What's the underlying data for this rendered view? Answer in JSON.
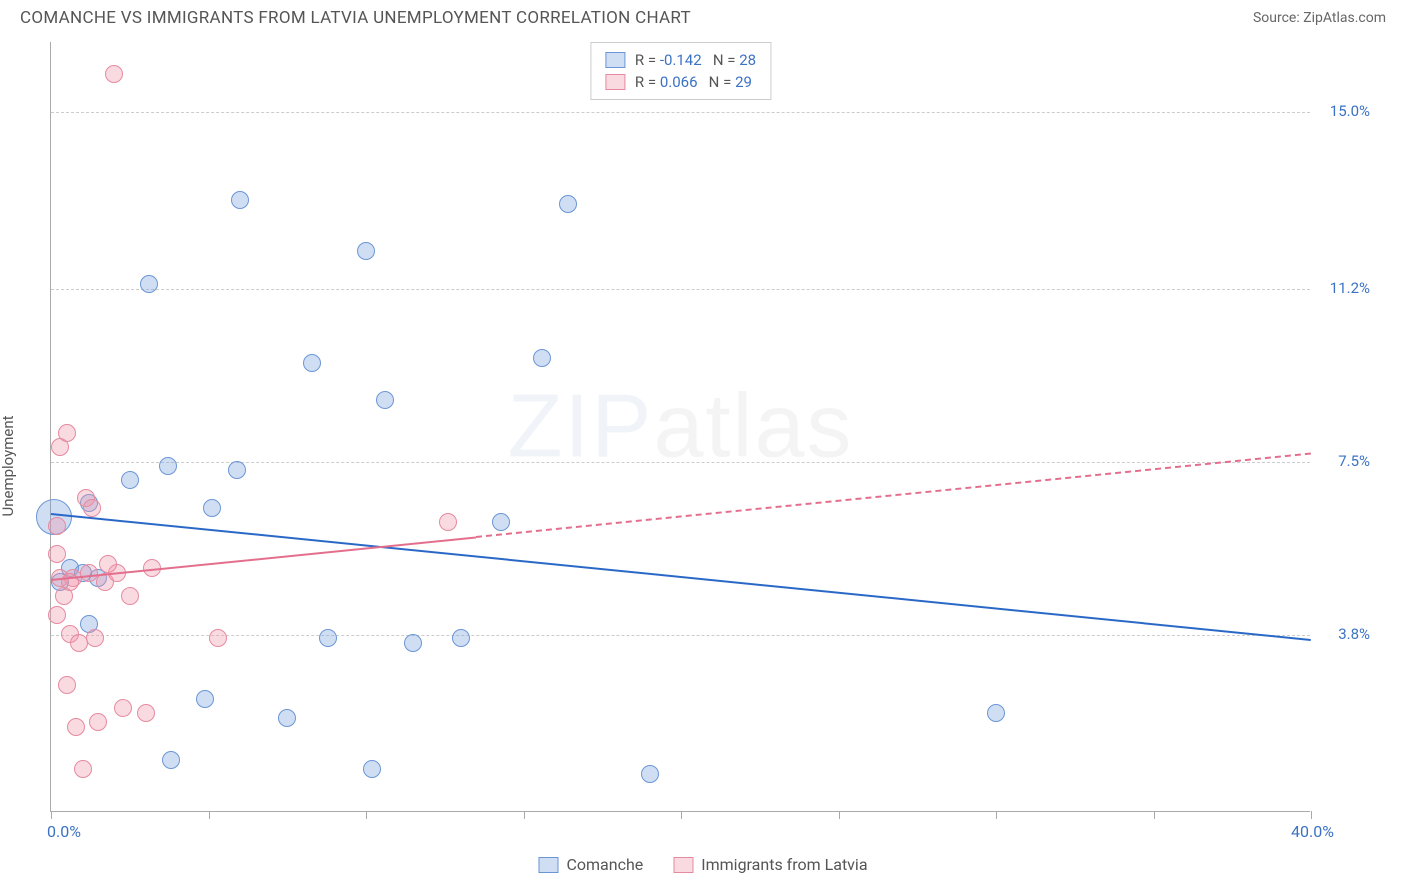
{
  "header": {
    "title": "COMANCHE VS IMMIGRANTS FROM LATVIA UNEMPLOYMENT CORRELATION CHART",
    "source": "Source: ZipAtlas.com"
  },
  "ylabel": "Unemployment",
  "watermark": {
    "text1": "ZIP",
    "text2": "atlas",
    "color1": "#9db8d8",
    "color2": "#b8b8b8"
  },
  "chart": {
    "type": "scatter",
    "xlim": [
      0,
      40
    ],
    "ylim": [
      0,
      16.5
    ],
    "y_gridlines": [
      3.8,
      7.5,
      11.2,
      15.0
    ],
    "x_ticks": [
      0,
      5,
      10,
      15,
      20,
      25,
      30,
      35,
      40
    ],
    "x_axis_labels": [
      {
        "x": 0,
        "text": "0.0%",
        "color": "#3b72c4"
      },
      {
        "x": 40,
        "text": "40.0%",
        "color": "#3b72c4"
      }
    ],
    "y_axis_labels": [
      {
        "y": 3.8,
        "text": "3.8%",
        "color": "#3b72c4"
      },
      {
        "y": 7.5,
        "text": "7.5%",
        "color": "#3b72c4"
      },
      {
        "y": 11.2,
        "text": "11.2%",
        "color": "#3b72c4"
      },
      {
        "y": 15.0,
        "text": "15.0%",
        "color": "#3b72c4"
      }
    ],
    "grid_color": "#cccccc",
    "axis_color": "#aaaaaa",
    "series": [
      {
        "name": "Comanche",
        "color_fill": "rgba(120,160,220,0.35)",
        "color_stroke": "#6b96d6",
        "r_default": 9,
        "points": [
          {
            "x": 0.1,
            "y": 6.3,
            "r": 18
          },
          {
            "x": 1.2,
            "y": 6.6
          },
          {
            "x": 1.0,
            "y": 5.1
          },
          {
            "x": 1.2,
            "y": 4.0
          },
          {
            "x": 2.5,
            "y": 7.1
          },
          {
            "x": 3.1,
            "y": 11.3
          },
          {
            "x": 3.8,
            "y": 1.1
          },
          {
            "x": 3.7,
            "y": 7.4
          },
          {
            "x": 4.9,
            "y": 2.4
          },
          {
            "x": 5.1,
            "y": 6.5
          },
          {
            "x": 5.9,
            "y": 7.3
          },
          {
            "x": 6.0,
            "y": 13.1
          },
          {
            "x": 7.5,
            "y": 2.0
          },
          {
            "x": 8.3,
            "y": 9.6
          },
          {
            "x": 8.8,
            "y": 3.7
          },
          {
            "x": 10.2,
            "y": 0.9
          },
          {
            "x": 10.0,
            "y": 12.0
          },
          {
            "x": 10.6,
            "y": 8.8
          },
          {
            "x": 11.5,
            "y": 3.6
          },
          {
            "x": 13.0,
            "y": 3.7
          },
          {
            "x": 14.3,
            "y": 6.2
          },
          {
            "x": 15.6,
            "y": 9.7
          },
          {
            "x": 16.4,
            "y": 13.0
          },
          {
            "x": 19.0,
            "y": 0.8
          },
          {
            "x": 30.0,
            "y": 2.1
          },
          {
            "x": 0.6,
            "y": 5.2
          },
          {
            "x": 1.5,
            "y": 5.0
          },
          {
            "x": 0.3,
            "y": 4.9
          }
        ],
        "trend": {
          "x1": 0,
          "y1": 6.4,
          "x2": 40,
          "y2": 3.7,
          "color": "#2a68c8",
          "dash_after_x": null
        }
      },
      {
        "name": "Immigrants from Latvia",
        "color_fill": "rgba(240,150,170,0.35)",
        "color_stroke": "#e68aa0",
        "r_default": 9,
        "points": [
          {
            "x": 0.2,
            "y": 5.5
          },
          {
            "x": 0.3,
            "y": 5.0
          },
          {
            "x": 0.3,
            "y": 7.8
          },
          {
            "x": 0.5,
            "y": 2.7
          },
          {
            "x": 0.5,
            "y": 8.1
          },
          {
            "x": 0.6,
            "y": 3.8
          },
          {
            "x": 0.7,
            "y": 5.0
          },
          {
            "x": 0.8,
            "y": 1.8
          },
          {
            "x": 0.9,
            "y": 3.6
          },
          {
            "x": 1.0,
            "y": 0.9
          },
          {
            "x": 1.1,
            "y": 6.7
          },
          {
            "x": 1.2,
            "y": 5.1
          },
          {
            "x": 1.4,
            "y": 3.7
          },
          {
            "x": 1.5,
            "y": 1.9
          },
          {
            "x": 1.7,
            "y": 4.9
          },
          {
            "x": 2.0,
            "y": 15.8
          },
          {
            "x": 2.1,
            "y": 5.1
          },
          {
            "x": 2.3,
            "y": 2.2
          },
          {
            "x": 2.5,
            "y": 4.6
          },
          {
            "x": 3.0,
            "y": 2.1
          },
          {
            "x": 3.2,
            "y": 5.2
          },
          {
            "x": 5.3,
            "y": 3.7
          },
          {
            "x": 12.6,
            "y": 6.2
          },
          {
            "x": 0.2,
            "y": 6.1
          },
          {
            "x": 0.4,
            "y": 4.6
          },
          {
            "x": 0.6,
            "y": 4.9
          },
          {
            "x": 1.3,
            "y": 6.5
          },
          {
            "x": 1.8,
            "y": 5.3
          },
          {
            "x": 0.2,
            "y": 4.2
          }
        ],
        "trend": {
          "x1": 0,
          "y1": 5.0,
          "x2": 40,
          "y2": 7.7,
          "color": "#e36f8d",
          "dash_after_x": 13.5
        }
      }
    ]
  },
  "legend_top": {
    "rows": [
      {
        "fill": "rgba(120,160,220,0.35)",
        "stroke": "#6b96d6",
        "r_label": "R = ",
        "r_val": "-0.142",
        "n_label": "   N = ",
        "n_val": "28",
        "val_color": "#3b72c4"
      },
      {
        "fill": "rgba(240,150,170,0.35)",
        "stroke": "#e68aa0",
        "r_label": "R = ",
        "r_val": "0.066",
        "n_label": "   N = ",
        "n_val": "29",
        "val_color": "#3b72c4"
      }
    ]
  },
  "legend_bottom": {
    "items": [
      {
        "fill": "rgba(120,160,220,0.35)",
        "stroke": "#6b96d6",
        "label": "Comanche"
      },
      {
        "fill": "rgba(240,150,170,0.35)",
        "stroke": "#e68aa0",
        "label": "Immigrants from Latvia"
      }
    ]
  }
}
